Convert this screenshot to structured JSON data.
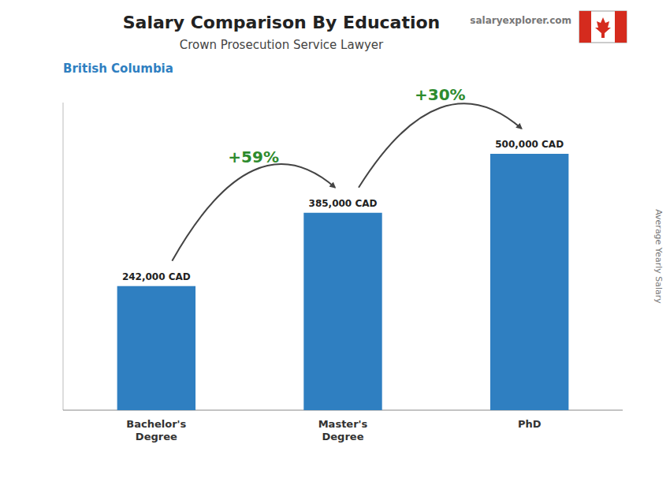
{
  "chart_data": {
    "type": "bar",
    "title": "Salary Comparison By Education",
    "subtitle": [
      "Crown Prosecution Service Lawyer",
      "British Columbia"
    ],
    "watermark": "salaryexplorer.com",
    "y_label": "Average Yearly Salary",
    "categories": [
      "Bachelor's\nDegree",
      "Master's\nDegree",
      "PhD"
    ],
    "values": [
      242000,
      385000,
      500000
    ],
    "value_labels": [
      "242,000 CAD",
      "385,000 CAD",
      "500,000 CAD"
    ],
    "data_labels": true,
    "annotations": [
      "+59%",
      "+30%"
    ],
    "color": "#2f7fc1",
    "ylim": [
      0,
      600000
    ],
    "tick_labels": false,
    "grid": false
  }
}
